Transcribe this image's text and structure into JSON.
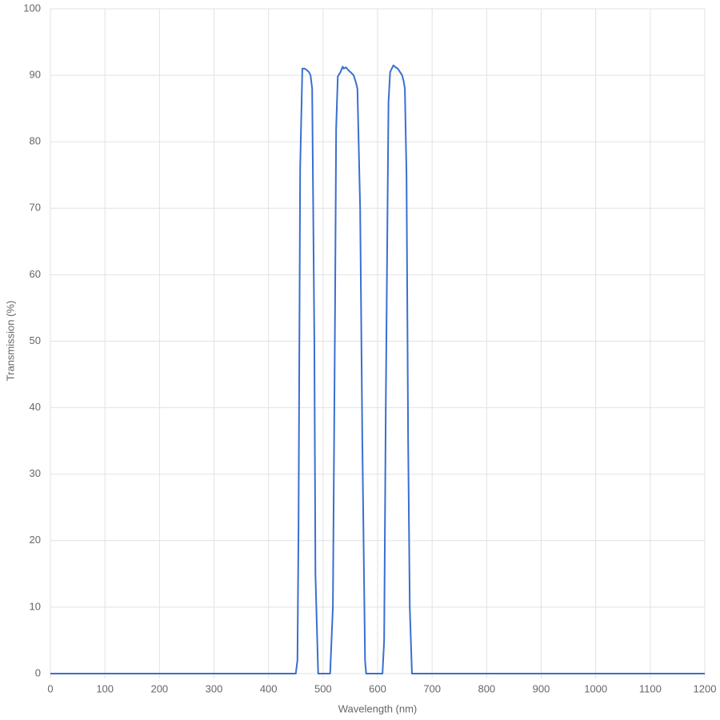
{
  "chart_data": {
    "type": "line",
    "x_label": "Wavelength (nm)",
    "y_label": "Transmission (%)",
    "xlim": [
      0,
      1200
    ],
    "ylim": [
      0,
      100
    ],
    "xticks": [
      0,
      100,
      200,
      300,
      400,
      500,
      600,
      700,
      800,
      900,
      1000,
      1100,
      1200
    ],
    "yticks": [
      0,
      10,
      20,
      30,
      40,
      50,
      60,
      70,
      80,
      90,
      100
    ],
    "grid": true,
    "series": [
      {
        "color": "#3a6fd0",
        "x": [
          0,
          450,
          453,
          455,
          458,
          462,
          466,
          470,
          474,
          477,
          480,
          484,
          486,
          491,
          513,
          518,
          522,
          524,
          527,
          532,
          536,
          538,
          542,
          546,
          550,
          556,
          560,
          563,
          568,
          572,
          577,
          579,
          609,
          612,
          615,
          618,
          620,
          623,
          629,
          633,
          637,
          641,
          645,
          648,
          650,
          653,
          656,
          659,
          663,
          1200
        ],
        "values": [
          0,
          0,
          2,
          22,
          76,
          91,
          91,
          90.8,
          90.5,
          90,
          88,
          50,
          15,
          0,
          0,
          10,
          55,
          82,
          89.8,
          90.5,
          91.3,
          91,
          91.2,
          90.8,
          90.5,
          90,
          89,
          88,
          70,
          35,
          2,
          0,
          0,
          5,
          40,
          68,
          86,
          90.5,
          91.5,
          91.2,
          91,
          90.5,
          90,
          89,
          88,
          75,
          35,
          10,
          0,
          0
        ]
      }
    ]
  }
}
